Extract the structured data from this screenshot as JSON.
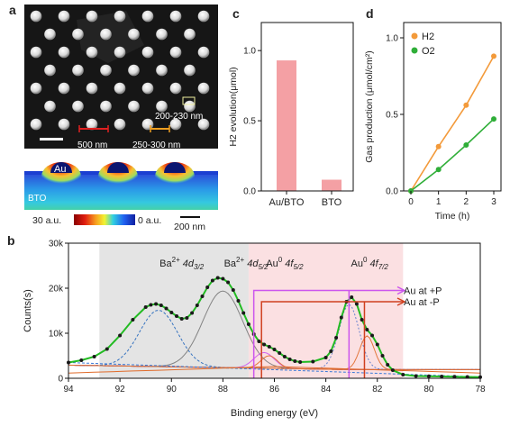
{
  "panels": {
    "a": {
      "label": "a",
      "sem_labels": {
        "dim_pillar": "200-230 nm",
        "dim_pitch": "500 nm",
        "dim_gap": "250-300 nm"
      },
      "sim_labels": {
        "au": "Au",
        "bto": "BTO",
        "scale_high": "30 a.u.",
        "scale_low": "0 a.u.",
        "scalebar": "200 nm"
      },
      "colors": {
        "field_low": "#1b3fd1",
        "field_high": "#b01010",
        "au_particle": "#0c1570"
      }
    },
    "b": {
      "label": "b"
    },
    "c": {
      "label": "c"
    },
    "d": {
      "label": "d"
    }
  },
  "chart_data": [
    {
      "panel": "b",
      "type": "line",
      "xlabel": "Binding energy (eV)",
      "ylabel": "Counts(s)",
      "xlim": [
        94,
        78
      ],
      "ylim": [
        0,
        30000
      ],
      "x_ticks": [
        "94",
        "92",
        "90",
        "88",
        "86",
        "84",
        "82",
        "80",
        "78"
      ],
      "y_ticks": [
        "0",
        "10k",
        "20k",
        "30k"
      ],
      "regions": [
        {
          "from": 92.8,
          "to": 87.0,
          "color": "#e4e4e4"
        },
        {
          "from": 87.0,
          "to": 81.0,
          "color": "#fbe0e2"
        }
      ],
      "peak_labels": [
        {
          "base": "Ba",
          "sup": "2+",
          "mid": " 4d",
          "sub": "3/2",
          "x": 89.6
        },
        {
          "base": "Ba",
          "sup": "2+",
          "mid": " 4d",
          "sub": "5/2",
          "x": 87.1
        },
        {
          "base": "Au",
          "sup": "0",
          "mid": " 4f",
          "sub": "5/2",
          "x": 85.6
        },
        {
          "base": "Au",
          "sup": "0",
          "mid": " 4f",
          "sub": "7/2",
          "x": 82.3
        }
      ],
      "arrows": [
        {
          "label": "Au at +P",
          "from": 86.8,
          "to": 83.1,
          "y": 19500,
          "color": "#cc55ee"
        },
        {
          "label": "Au at -P",
          "from": 86.5,
          "to": 82.5,
          "y": 17000,
          "color": "#d04020"
        }
      ],
      "measured": {
        "x": [
          94.0,
          93.5,
          93.0,
          92.5,
          92.0,
          91.5,
          91.0,
          90.8,
          90.6,
          90.4,
          90.2,
          90.0,
          89.8,
          89.6,
          89.4,
          89.2,
          89.0,
          88.8,
          88.6,
          88.4,
          88.2,
          88.0,
          87.8,
          87.6,
          87.4,
          87.2,
          87.0,
          86.8,
          86.6,
          86.4,
          86.2,
          86.0,
          85.8,
          85.6,
          85.4,
          85.2,
          85.0,
          84.5,
          84.0,
          83.8,
          83.6,
          83.4,
          83.2,
          83.0,
          82.8,
          82.6,
          82.4,
          82.2,
          82.0,
          81.8,
          81.6,
          81.4,
          81.0,
          80.5,
          80.0,
          79.5,
          79.0,
          78.5,
          78.0
        ],
        "y": [
          3500,
          4000,
          4800,
          6500,
          9500,
          13000,
          15800,
          16300,
          16500,
          16200,
          15500,
          14600,
          13800,
          13200,
          13400,
          14500,
          16200,
          18200,
          20200,
          21700,
          22300,
          22100,
          21300,
          19600,
          17200,
          14500,
          12000,
          9800,
          8200,
          7500,
          7000,
          6400,
          5600,
          4800,
          4200,
          3800,
          3600,
          3700,
          4600,
          6000,
          9000,
          13500,
          17000,
          18000,
          16500,
          13000,
          10800,
          9500,
          7500,
          5000,
          3000,
          1800,
          800,
          500,
          450,
          400,
          350,
          300,
          250
        ]
      },
      "colors": {
        "measured": "#1a1a1a",
        "fit": "#22bb22"
      }
    },
    {
      "panel": "c",
      "type": "bar",
      "categories": [
        "Au/BTO",
        "BTO"
      ],
      "values": [
        0.93,
        0.08
      ],
      "ylabel": "H2 evolution(μmol)",
      "ylim": [
        0,
        1.2
      ],
      "y_ticks": [
        "0.0",
        "0.5",
        "1.0"
      ],
      "color": "#f4a0a4"
    },
    {
      "panel": "d",
      "type": "line",
      "x": [
        0,
        1,
        2,
        3
      ],
      "series": [
        {
          "name": "H2",
          "values": [
            0.0,
            0.29,
            0.56,
            0.88
          ],
          "color": "#f39a3a"
        },
        {
          "name": "O2",
          "values": [
            0.0,
            0.14,
            0.3,
            0.47
          ],
          "color": "#2fae38"
        }
      ],
      "xlabel": "Time (h)",
      "ylabel": "Gas production (μmol/cm²)",
      "xlim": [
        0,
        3
      ],
      "ylim": [
        0,
        1.1
      ],
      "x_ticks": [
        "0",
        "1",
        "2",
        "3"
      ],
      "y_ticks": [
        "0.0",
        "0.5",
        "1.0"
      ],
      "legend_position": "top-left"
    }
  ]
}
